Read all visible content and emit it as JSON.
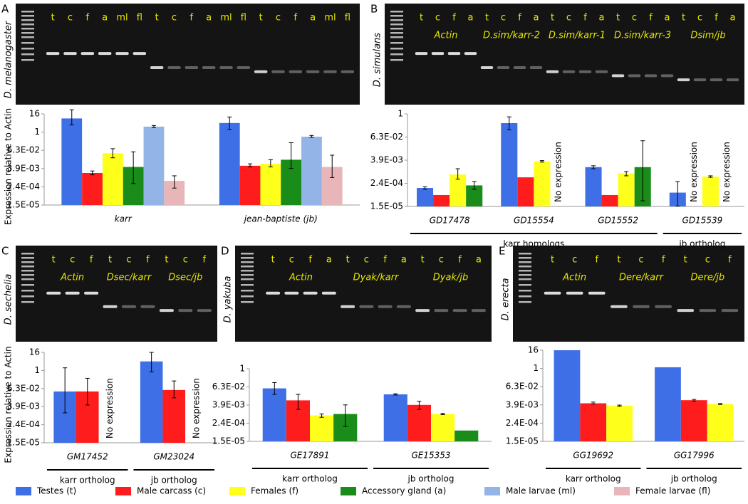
{
  "panels": [
    {
      "label": "A",
      "species": "D. melanogaster",
      "lanes": [
        "t",
        "c",
        "f",
        "a",
        "ml",
        "fl",
        "t",
        "c",
        "f",
        "a",
        "ml",
        "fl",
        "t",
        "c",
        "f",
        "a",
        "ml",
        "fl"
      ],
      "genes": []
    },
    {
      "label": "B",
      "species": "D. simulans",
      "lanes": [
        "t",
        "c",
        "f",
        "a",
        "t",
        "c",
        "f",
        "a",
        "t",
        "c",
        "f",
        "a",
        "t",
        "c",
        "f",
        "a",
        "t",
        "c",
        "f",
        "a"
      ],
      "genes": [
        "Actin",
        "D.sim/karr-2",
        "D.sim/karr-1",
        "D.sim/karr-3",
        "Dsim/jb"
      ]
    },
    {
      "label": "C",
      "species": "D. sechelia",
      "lanes": [
        "t",
        "c",
        "f",
        "t",
        "c",
        "f",
        "t",
        "c",
        "f"
      ],
      "genes": [
        "Actin",
        "Dsec/karr",
        "Dsec/jb"
      ]
    },
    {
      "label": "D",
      "species": "D. yakuba",
      "lanes": [
        "t",
        "c",
        "f",
        "a",
        "t",
        "c",
        "f",
        "a",
        "t",
        "c",
        "f",
        "a"
      ],
      "genes": [
        "Actin",
        "Dyak/karr",
        "Dyak/jb"
      ]
    },
    {
      "label": "E",
      "species": "D. erecta",
      "lanes": [
        "t",
        "c",
        "f",
        "t",
        "c",
        "f",
        "t",
        "c",
        "f"
      ],
      "genes": [
        "Actin",
        "Dere/karr",
        "Dere/jb"
      ]
    }
  ],
  "chart_data": [
    {
      "type": "bar",
      "log_scale": true,
      "ylabel": "Expression relative to Actin",
      "categories": [
        "karr",
        "jean-baptiste (jb)"
      ],
      "ylim": [
        1.526e-05,
        16
      ],
      "yticks": [
        {
          "value": 1.526e-05,
          "label": "1.5E-05"
        },
        {
          "value": 0.0002441,
          "label": "2.4E-04"
        },
        {
          "value": 0.003906,
          "label": "3.9E-03"
        },
        {
          "value": 0.0625,
          "label": "6.3E-02"
        },
        1,
        16
      ],
      "series": [
        {
          "name": "Testes (t)",
          "color": "#3f6fe6",
          "values": [
            8,
            4
          ],
          "errors": [
            [
              3,
              30
            ],
            [
              1.5,
              10
            ]
          ]
        },
        {
          "name": "Male carcass (c)",
          "color": "#ff1c1c",
          "values": [
            0.002,
            0.006
          ],
          "errors": [
            [
              0.0015,
              0.0027
            ],
            [
              0.005,
              0.008
            ]
          ]
        },
        {
          "name": "Females (f)",
          "color": "#ffff1c",
          "values": [
            0.04,
            0.008
          ],
          "errors": [
            [
              0.02,
              0.08
            ],
            [
              0.005,
              0.015
            ]
          ]
        },
        {
          "name": "Accessory gland (a)",
          "color": "#1a8c1a",
          "values": [
            0.005,
            0.015
          ],
          "errors": [
            [
              0.0004,
              0.05
            ],
            [
              0.004,
              0.2
            ]
          ]
        },
        {
          "name": "Male larvae (ml)",
          "color": "#93b4e6",
          "values": [
            2.3,
            0.5
          ],
          "errors": [
            [
              2,
              2.7
            ],
            [
              0.45,
              0.6
            ]
          ]
        },
        {
          "name": "Female larvae (fl)",
          "color": "#e8b6b8",
          "values": [
            0.0006,
            0.005
          ],
          "errors": [
            [
              0.0002,
              0.0013
            ],
            [
              0.001,
              0.03
            ]
          ]
        }
      ]
    },
    {
      "type": "bar",
      "log_scale": true,
      "categories": [
        "GD17478",
        "GD15554",
        "GD15552",
        "GD15539"
      ],
      "ylim": [
        1.526e-05,
        1
      ],
      "yticks": [
        {
          "value": 1.526e-05,
          "label": "1.5E-05"
        },
        {
          "value": 0.0002441,
          "label": "2.4E-04"
        },
        {
          "value": 0.003906,
          "label": "3.9E-03"
        },
        {
          "value": 0.0625,
          "label": "6.3E-02"
        },
        1
      ],
      "series": [
        {
          "name": "Testes (t)",
          "color": "#3f6fe6",
          "values": [
            0.00014,
            0.33,
            0.0017,
            8e-05
          ],
          "errors": [
            [
              0.00012,
              0.00016
            ],
            [
              0.15,
              0.7
            ],
            [
              0.0014,
              0.002
            ],
            [
              1.6e-05,
              0.0003
            ]
          ]
        },
        {
          "name": "Male carcass (c)",
          "color": "#ff1c1c",
          "values": [
            6e-05,
            0.0005,
            6e-05,
            null
          ],
          "errors": [
            null,
            null,
            null,
            null
          ]
        },
        {
          "name": "Females (f)",
          "color": "#ffff1c",
          "values": [
            0.0007,
            0.0034,
            0.0008,
            0.00055
          ],
          "errors": [
            [
              0.0004,
              0.0014
            ],
            [
              0.0031,
              0.0037
            ],
            [
              0.0006,
              0.001
            ],
            [
              0.0005,
              0.0006
            ]
          ]
        },
        {
          "name": "Accessory gland (a)",
          "color": "#1a8c1a",
          "values": [
            0.00019,
            null,
            0.0017,
            null
          ],
          "errors": [
            [
              0.00012,
              0.0003
            ],
            null,
            [
              3e-05,
              0.04
            ],
            null
          ]
        }
      ],
      "annotations": [
        {
          "text": "No expression",
          "category": 1,
          "series": 3
        },
        {
          "text": "No expression",
          "category": 3,
          "series": 1
        },
        {
          "text": "No expression",
          "category": 3,
          "series": 3
        }
      ],
      "groups": [
        {
          "label": "karr homologs",
          "from": 0,
          "to": 2
        },
        {
          "label": "jb ortholog",
          "from": 3,
          "to": 3
        }
      ]
    },
    {
      "type": "bar",
      "log_scale": true,
      "ylabel": "Expression relative to Actin",
      "categories": [
        "GM17452",
        "GM23024"
      ],
      "ylim": [
        1.526e-05,
        16
      ],
      "yticks": [
        {
          "value": 1.526e-05,
          "label": "1.5E-05"
        },
        {
          "value": 0.0002441,
          "label": "2.4E-04"
        },
        {
          "value": 0.003906,
          "label": "3.9E-03"
        },
        {
          "value": 0.0625,
          "label": "6.3E-02"
        },
        1,
        16
      ],
      "series": [
        {
          "name": "Testes (t)",
          "color": "#3f6fe6",
          "values": [
            0.04,
            4
          ],
          "errors": [
            [
              0.0015,
              1.5
            ],
            [
              0.8,
              16
            ]
          ]
        },
        {
          "name": "Male carcass (c)",
          "color": "#ff1c1c",
          "values": [
            0.04,
            0.05
          ],
          "errors": [
            [
              0.005,
              0.3
            ],
            [
              0.015,
              0.2
            ]
          ]
        },
        {
          "name": "Females (f)",
          "color": "#ffff1c",
          "values": [
            null,
            null
          ],
          "errors": [
            null,
            null
          ]
        }
      ],
      "annotations": [
        {
          "text": "No expression",
          "category": 0,
          "series": 2
        },
        {
          "text": "No expression",
          "category": 1,
          "series": 2
        }
      ],
      "groups": [
        {
          "label": "karr ortholog",
          "from": 0,
          "to": 0
        },
        {
          "label": "jb ortholog",
          "from": 1,
          "to": 1
        }
      ]
    },
    {
      "type": "bar",
      "log_scale": true,
      "categories": [
        "GE17891",
        "GE15353"
      ],
      "ylim": [
        1.526e-05,
        1
      ],
      "yticks": [
        {
          "value": 1.526e-05,
          "label": "1.5E-05"
        },
        {
          "value": 0.0002441,
          "label": "2.4E-04"
        },
        {
          "value": 0.003906,
          "label": "3.9E-03"
        },
        {
          "value": 0.0625,
          "label": "6.3E-02"
        },
        1
      ],
      "series": [
        {
          "name": "Testes (t)",
          "color": "#3f6fe6",
          "values": [
            0.05,
            0.02
          ],
          "errors": [
            [
              0.02,
              0.12
            ],
            [
              0.018,
              0.022
            ]
          ]
        },
        {
          "name": "Male carcass (c)",
          "color": "#ff1c1c",
          "values": [
            0.008,
            0.004
          ],
          "errors": [
            [
              0.002,
              0.02
            ],
            [
              0.002,
              0.007
            ]
          ]
        },
        {
          "name": "Females (f)",
          "color": "#ffff1c",
          "values": [
            0.0008,
            0.001
          ],
          "errors": [
            [
              0.0006,
              0.001
            ],
            [
              0.0009,
              0.0011
            ]
          ]
        },
        {
          "name": "Accessory gland (a)",
          "color": "#1a8c1a",
          "values": [
            0.001,
            8e-05
          ],
          "errors": [
            [
              0.00015,
              0.004
            ],
            null
          ]
        }
      ],
      "groups": [
        {
          "label": "karr ortholog",
          "from": 0,
          "to": 0
        },
        {
          "label": "jb ortholog",
          "from": 1,
          "to": 1
        }
      ]
    },
    {
      "type": "bar",
      "log_scale": true,
      "categories": [
        "GG19692",
        "GG17996"
      ],
      "ylim": [
        1.526e-05,
        16
      ],
      "yticks": [
        {
          "value": 1.526e-05,
          "label": "1.5E-05"
        },
        {
          "value": 0.0002441,
          "label": "2.4E-04"
        },
        {
          "value": 0.003906,
          "label": "3.9E-03"
        },
        {
          "value": 0.0625,
          "label": "6.3E-02"
        },
        1,
        16
      ],
      "series": [
        {
          "name": "Testes (t)",
          "color": "#3f6fe6",
          "values": [
            16,
            1.2
          ],
          "errors": [
            null,
            null
          ]
        },
        {
          "name": "Male carcass (c)",
          "color": "#ff1c1c",
          "values": [
            0.005,
            0.008
          ],
          "errors": [
            [
              0.0045,
              0.006
            ],
            [
              0.007,
              0.009
            ]
          ]
        },
        {
          "name": "Females (f)",
          "color": "#ffff1c",
          "values": [
            0.0035,
            0.0045
          ],
          "errors": [
            [
              0.0032,
              0.0038
            ],
            [
              0.0042,
              0.0048
            ]
          ]
        }
      ],
      "groups": [
        {
          "label": "karr ortholog",
          "from": 0,
          "to": 0
        },
        {
          "label": "jb ortholog",
          "from": 1,
          "to": 1
        }
      ]
    }
  ]
}
